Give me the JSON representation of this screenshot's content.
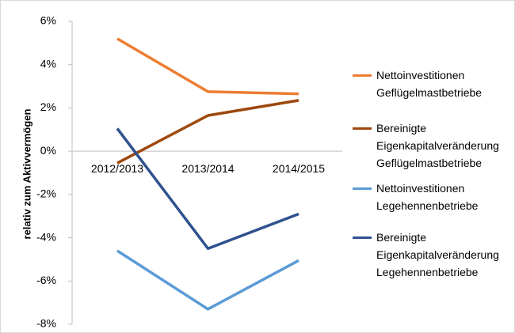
{
  "chart_data": {
    "type": "line",
    "y_label": "relativ zum Aktivvermögen",
    "categories": [
      "2012/2013",
      "2013/2014",
      "2014/2015"
    ],
    "series": [
      {
        "name": "Nettoinvestitionen Geflügelmastbetriebe",
        "color": "#ed7d31",
        "values": [
          5.2,
          2.75,
          2.65
        ]
      },
      {
        "name": "Bereinigte Eigenkapitalveränderung Geflügelmastbetriebe",
        "color": "#9e480e",
        "values": [
          -0.55,
          1.65,
          2.35
        ]
      },
      {
        "name": "Nettoinvestitionen Legehennenbetriebe",
        "color": "#5b9bd5",
        "values": [
          -4.6,
          -7.3,
          -5.05
        ]
      },
      {
        "name": "Bereinigte Eigenkapitalveränderung Legehennenbetriebe",
        "color": "#2f528f",
        "values": [
          1.05,
          -4.5,
          -2.9
        ]
      }
    ],
    "ylim": [
      -8,
      6
    ],
    "yticks": [
      {
        "value": -8,
        "label": "-8%"
      },
      {
        "value": -6,
        "label": "-6%"
      },
      {
        "value": -4,
        "label": "-4%"
      },
      {
        "value": -2,
        "label": "-2%"
      },
      {
        "value": 0,
        "label": "0%"
      },
      {
        "value": 2,
        "label": "2%"
      },
      {
        "value": 4,
        "label": "4%"
      },
      {
        "value": 6,
        "label": "6%"
      }
    ],
    "grid": false,
    "legend": "right"
  }
}
